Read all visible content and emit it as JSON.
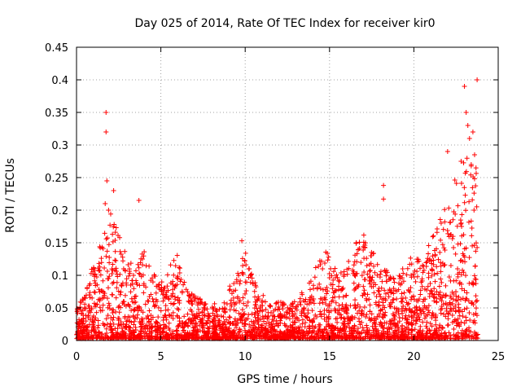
{
  "chart_data": {
    "type": "scatter",
    "title": "Day 025 of 2014, Rate Of TEC Index for receiver kir0",
    "xlabel": "GPS time / hours",
    "ylabel": "ROTI / TECUs",
    "xlim": [
      0,
      25
    ],
    "ylim": [
      0,
      0.45
    ],
    "xticks": [
      0,
      5,
      10,
      15,
      20,
      25
    ],
    "yticks": [
      0,
      0.05,
      0.1,
      0.15,
      0.2,
      0.25,
      0.3,
      0.35,
      0.4,
      0.45
    ],
    "xtick_labels": [
      "0",
      "5",
      "10",
      "15",
      "20",
      "25"
    ],
    "ytick_labels": [
      "0",
      "0.05",
      "0.1",
      "0.15",
      "0.2",
      "0.25",
      "0.3",
      "0.35",
      "0.4",
      "0.45"
    ],
    "grid": true,
    "marker": "+",
    "color": "#ff0000",
    "envelope_hours": [
      0.0,
      0.5,
      1.0,
      1.5,
      2.0,
      2.5,
      3.0,
      3.5,
      4.0,
      4.5,
      5.0,
      5.5,
      6.0,
      6.5,
      7.0,
      7.5,
      8.0,
      8.5,
      9.0,
      9.5,
      10.0,
      10.5,
      11.0,
      11.5,
      12.0,
      12.5,
      13.0,
      13.5,
      14.0,
      14.5,
      15.0,
      15.5,
      16.0,
      16.5,
      17.0,
      17.5,
      18.0,
      18.5,
      19.0,
      19.5,
      20.0,
      20.5,
      21.0,
      21.5,
      22.0,
      22.5,
      23.0,
      23.5,
      23.8
    ],
    "envelope_roti": [
      0.05,
      0.07,
      0.12,
      0.16,
      0.2,
      0.17,
      0.13,
      0.12,
      0.14,
      0.1,
      0.09,
      0.11,
      0.13,
      0.08,
      0.07,
      0.06,
      0.05,
      0.06,
      0.08,
      0.1,
      0.14,
      0.09,
      0.07,
      0.05,
      0.06,
      0.05,
      0.06,
      0.08,
      0.1,
      0.13,
      0.14,
      0.1,
      0.12,
      0.15,
      0.16,
      0.14,
      0.12,
      0.1,
      0.09,
      0.12,
      0.13,
      0.12,
      0.15,
      0.18,
      0.22,
      0.25,
      0.28,
      0.3,
      0.26
    ],
    "outliers": [
      {
        "x": 1.75,
        "y": 0.35
      },
      {
        "x": 1.75,
        "y": 0.32
      },
      {
        "x": 1.8,
        "y": 0.245
      },
      {
        "x": 1.7,
        "y": 0.21
      },
      {
        "x": 1.9,
        "y": 0.2
      },
      {
        "x": 2.2,
        "y": 0.23
      },
      {
        "x": 3.7,
        "y": 0.215
      },
      {
        "x": 9.8,
        "y": 0.153
      },
      {
        "x": 18.2,
        "y": 0.238
      },
      {
        "x": 18.2,
        "y": 0.217
      },
      {
        "x": 22.0,
        "y": 0.29
      },
      {
        "x": 22.8,
        "y": 0.275
      },
      {
        "x": 23.0,
        "y": 0.39
      },
      {
        "x": 23.1,
        "y": 0.35
      },
      {
        "x": 23.2,
        "y": 0.33
      },
      {
        "x": 23.3,
        "y": 0.31
      },
      {
        "x": 23.5,
        "y": 0.32
      },
      {
        "x": 23.6,
        "y": 0.285
      },
      {
        "x": 23.75,
        "y": 0.4
      },
      {
        "x": 23.4,
        "y": 0.27
      }
    ]
  }
}
